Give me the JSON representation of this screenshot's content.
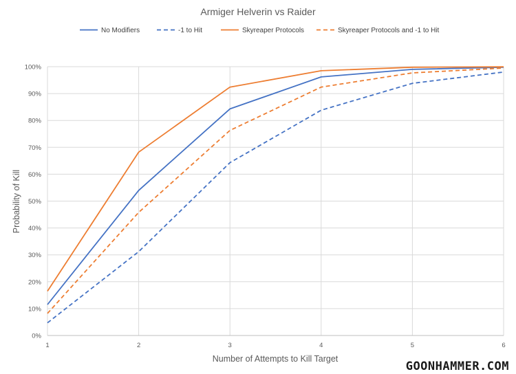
{
  "watermark": "GOONHAMMER.COM",
  "chart_data": {
    "type": "line",
    "title": "Armiger Helverin vs Raider",
    "xlabel": "Number of Attempts to Kill Target",
    "ylabel": "Probability of Kill",
    "x": [
      1,
      2,
      3,
      4,
      5,
      6
    ],
    "xlim": [
      1,
      6
    ],
    "ylim": [
      0,
      1
    ],
    "x_ticks": [
      "1",
      "2",
      "3",
      "4",
      "5",
      "6"
    ],
    "y_ticks": [
      "0%",
      "10%",
      "20%",
      "30%",
      "40%",
      "50%",
      "60%",
      "70%",
      "80%",
      "90%",
      "100%"
    ],
    "grid": true,
    "legend_position": "top",
    "series": [
      {
        "name": "No Modifiers",
        "color": "#4472c4",
        "style": "solid",
        "values": [
          0.115,
          0.54,
          0.843,
          0.962,
          0.99,
          0.998
        ]
      },
      {
        "name": "-1 to Hit",
        "color": "#4472c4",
        "style": "dashed",
        "values": [
          0.047,
          0.312,
          0.643,
          0.838,
          0.938,
          0.98
        ]
      },
      {
        "name": "Skyreaper Protocols",
        "color": "#ed7d31",
        "style": "solid",
        "values": [
          0.165,
          0.682,
          0.924,
          0.985,
          0.998,
          0.9995
        ]
      },
      {
        "name": "Skyreaper Protocols and -1 to Hit",
        "color": "#ed7d31",
        "style": "dashed",
        "values": [
          0.082,
          0.458,
          0.763,
          0.924,
          0.977,
          0.995
        ]
      }
    ]
  }
}
